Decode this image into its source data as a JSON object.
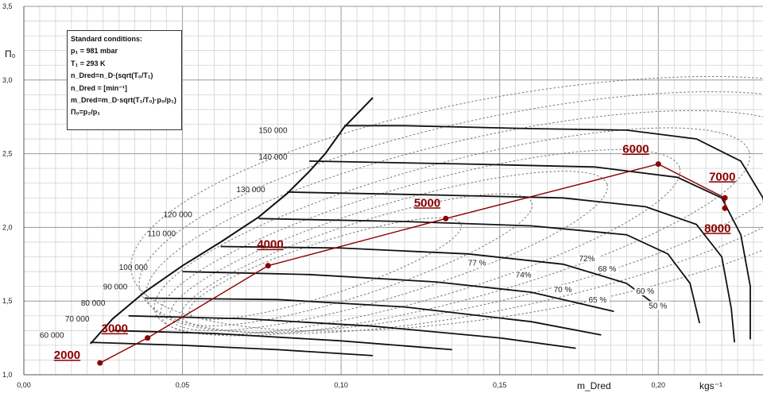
{
  "chart_data": {
    "type": "line",
    "title": "",
    "xlabel": "m_Dred",
    "x_unit": "kgs⁻¹",
    "ylabel": "Π₀",
    "xlim": [
      0,
      0.233
    ],
    "ylim": [
      1.0,
      3.5
    ],
    "x_ticks": [
      "0,00",
      "0,05",
      "0,10",
      "0,15",
      "0,20"
    ],
    "y_ticks": [
      "1,0",
      "1,5",
      "2,0",
      "2,5",
      "3,0",
      "3,5"
    ],
    "grid": true,
    "standard_conditions": [
      "Standard conditions:",
      "p₁ = 981 mbar",
      "T₁ = 293 K",
      "n_Dred=n_D·(sqrt(T₀/T₁)",
      "n_Dred = [min⁻¹]",
      "m_Dred=m_D·sqrt(T₁/T₀)·p₀/p₁)",
      "Π₀=p₂/p₁"
    ],
    "surge_line": [
      [
        0.021,
        1.21
      ],
      [
        0.028,
        1.38
      ],
      [
        0.038,
        1.56
      ],
      [
        0.05,
        1.74
      ],
      [
        0.062,
        1.9
      ],
      [
        0.074,
        2.07
      ],
      [
        0.083,
        2.23
      ],
      [
        0.09,
        2.38
      ],
      [
        0.095,
        2.5
      ],
      [
        0.101,
        2.68
      ],
      [
        0.11,
        2.88
      ]
    ],
    "speed_lines": [
      {
        "label": "60 000",
        "x_label": 0.005,
        "y_label": 1.25,
        "points": [
          [
            0.021,
            1.22
          ],
          [
            0.05,
            1.2
          ],
          [
            0.08,
            1.17
          ],
          [
            0.11,
            1.13
          ]
        ]
      },
      {
        "label": "70 000",
        "x_label": 0.013,
        "y_label": 1.36,
        "points": [
          [
            0.028,
            1.3
          ],
          [
            0.06,
            1.28
          ],
          [
            0.1,
            1.23
          ],
          [
            0.135,
            1.17
          ]
        ]
      },
      {
        "label": "80 000",
        "x_label": 0.018,
        "y_label": 1.47,
        "points": [
          [
            0.033,
            1.4
          ],
          [
            0.07,
            1.38
          ],
          [
            0.11,
            1.33
          ],
          [
            0.15,
            1.25
          ],
          [
            0.174,
            1.18
          ]
        ]
      },
      {
        "label": "90 000",
        "x_label": 0.025,
        "y_label": 1.58,
        "points": [
          [
            0.038,
            1.52
          ],
          [
            0.08,
            1.51
          ],
          [
            0.12,
            1.46
          ],
          [
            0.16,
            1.36
          ],
          [
            0.182,
            1.27
          ]
        ]
      },
      {
        "label": "100 000",
        "x_label": 0.03,
        "y_label": 1.71,
        "points": [
          [
            0.05,
            1.7
          ],
          [
            0.09,
            1.68
          ],
          [
            0.13,
            1.63
          ],
          [
            0.16,
            1.56
          ],
          [
            0.186,
            1.43
          ]
        ]
      },
      {
        "label": "110 000",
        "x_label": 0.039,
        "y_label": 1.94,
        "points": [
          [
            0.062,
            1.87
          ],
          [
            0.1,
            1.86
          ],
          [
            0.14,
            1.82
          ],
          [
            0.17,
            1.75
          ],
          [
            0.19,
            1.62
          ],
          [
            0.2,
            1.46
          ]
        ]
      },
      {
        "label": "120 000",
        "x_label": 0.044,
        "y_label": 2.07,
        "points": [
          [
            0.074,
            2.06
          ],
          [
            0.12,
            2.04
          ],
          [
            0.16,
            2.01
          ],
          [
            0.19,
            1.95
          ],
          [
            0.203,
            1.82
          ],
          [
            0.21,
            1.62
          ],
          [
            0.213,
            1.35
          ]
        ]
      },
      {
        "label": "130 000",
        "x_label": 0.067,
        "y_label": 2.24,
        "points": [
          [
            0.083,
            2.24
          ],
          [
            0.13,
            2.22
          ],
          [
            0.17,
            2.2
          ],
          [
            0.196,
            2.14
          ],
          [
            0.212,
            2.02
          ],
          [
            0.22,
            1.8
          ],
          [
            0.223,
            1.45
          ],
          [
            0.224,
            1.22
          ]
        ]
      },
      {
        "label": "140 000",
        "x_label": 0.074,
        "y_label": 2.46,
        "points": [
          [
            0.09,
            2.45
          ],
          [
            0.14,
            2.43
          ],
          [
            0.18,
            2.41
          ],
          [
            0.206,
            2.34
          ],
          [
            0.22,
            2.2
          ],
          [
            0.226,
            1.95
          ],
          [
            0.229,
            1.6
          ],
          [
            0.229,
            1.24
          ]
        ]
      },
      {
        "label": "150 000",
        "x_label": 0.074,
        "y_label": 2.64,
        "points": [
          [
            0.101,
            2.69
          ],
          [
            0.12,
            2.69
          ],
          [
            0.16,
            2.67
          ],
          [
            0.19,
            2.66
          ],
          [
            0.212,
            2.6
          ],
          [
            0.226,
            2.45
          ],
          [
            0.233,
            2.2
          ],
          [
            0.236,
            1.85
          ],
          [
            0.236,
            1.3
          ]
        ]
      }
    ],
    "efficiency_labels": [
      {
        "label": "77 %",
        "x": 0.14,
        "y": 1.74
      },
      {
        "label": "74%",
        "x": 0.155,
        "y": 1.66
      },
      {
        "label": "72%",
        "x": 0.175,
        "y": 1.77
      },
      {
        "label": "70 %",
        "x": 0.167,
        "y": 1.56
      },
      {
        "label": "68 %",
        "x": 0.181,
        "y": 1.7
      },
      {
        "label": "65 %",
        "x": 0.178,
        "y": 1.49
      },
      {
        "label": "60 %",
        "x": 0.193,
        "y": 1.55
      },
      {
        "label": "50 %",
        "x": 0.197,
        "y": 1.45
      }
    ],
    "engine_line": {
      "color": "#8b0000",
      "points": [
        {
          "label": "2000",
          "x": 0.024,
          "y": 1.08
        },
        {
          "label": "3000",
          "x": 0.039,
          "y": 1.25
        },
        {
          "label": "4000",
          "x": 0.077,
          "y": 1.74
        },
        {
          "label": "5000",
          "x": 0.133,
          "y": 2.06
        },
        {
          "label": "6000",
          "x": 0.2,
          "y": 2.43
        },
        {
          "label": "7000",
          "x": 0.221,
          "y": 2.2
        },
        {
          "label": "8000",
          "x": 0.221,
          "y": 2.13
        }
      ]
    }
  }
}
